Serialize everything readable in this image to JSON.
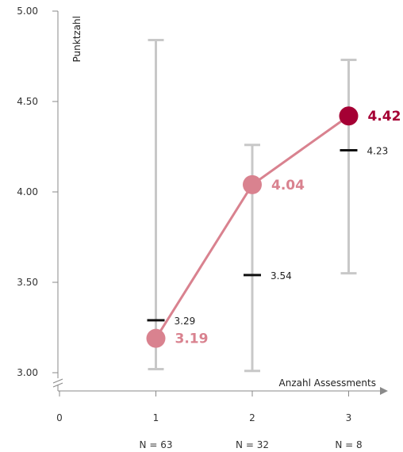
{
  "chart_data": {
    "type": "line",
    "title": "",
    "ylabel": "Punktzahl",
    "xlabel": "Anzahl Assessments",
    "ylim": [
      3.0,
      5.0
    ],
    "y_ticks": [
      "3.00",
      "3.50",
      "4.00",
      "4.50",
      "5.00"
    ],
    "x_ticks": [
      "0",
      "1",
      "2",
      "3"
    ],
    "y_axis_break": true,
    "grid": false,
    "points": [
      {
        "x": 1,
        "n_label": "N = 63",
        "mean": 3.19,
        "mean_label": "3.19",
        "median": 3.29,
        "median_label": "3.29",
        "min": 3.02,
        "max": 4.84
      },
      {
        "x": 2,
        "n_label": "N = 32",
        "mean": 4.04,
        "mean_label": "4.04",
        "median": 3.54,
        "median_label": "3.54",
        "min": 3.01,
        "max": 4.26
      },
      {
        "x": 3,
        "n_label": "N = 8",
        "mean": 4.42,
        "mean_label": "4.42",
        "median": 4.23,
        "median_label": "4.23",
        "min": 3.55,
        "max": 4.73
      }
    ],
    "colors": {
      "line": "#d9828f",
      "point": "#d9828f",
      "highlight_point": "#a50034",
      "range_bar": "#c8c8c8",
      "median_tick": "#111111",
      "axis": "#8a8a8a"
    }
  }
}
